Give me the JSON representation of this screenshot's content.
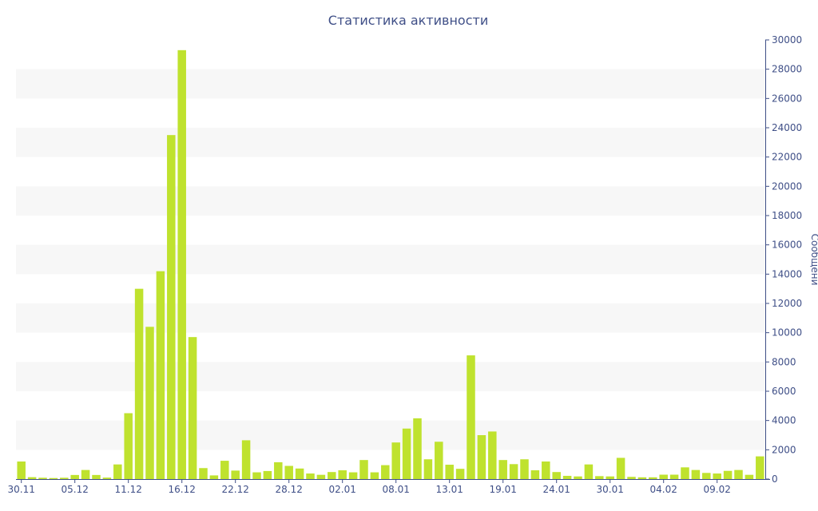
{
  "chart_data": {
    "type": "bar",
    "title": "Статистика активности",
    "xlabel": "",
    "ylabel": "Сообщени",
    "x_tick_labels": [
      "30.11",
      "05.12",
      "11.12",
      "16.12",
      "22.12",
      "28.12",
      "02.01",
      "08.01",
      "13.01",
      "19.01",
      "24.01",
      "30.01",
      "04.02",
      "09.02"
    ],
    "ylim": [
      0,
      30000
    ],
    "y_ticks": [
      0,
      2000,
      4000,
      6000,
      8000,
      10000,
      12000,
      14000,
      16000,
      18000,
      20000,
      22000,
      24000,
      26000,
      28000,
      30000
    ],
    "y_axis_position": "right",
    "grid": "horizontal alternating bands",
    "series": [
      {
        "values": [
          1200,
          130,
          90,
          70,
          90,
          280,
          620,
          280,
          100,
          1000,
          4500,
          13000,
          10400,
          14200,
          23500,
          29300,
          9700,
          750,
          250,
          1250,
          580,
          2650,
          460,
          550,
          1150,
          900,
          720,
          380,
          290,
          480,
          600,
          460,
          1300,
          460,
          950,
          2500,
          3450,
          4150,
          1350,
          2550,
          980,
          700,
          8450,
          3000,
          3250,
          1300,
          1020,
          1350,
          600,
          1200,
          480,
          220,
          180,
          1000,
          200,
          180,
          1450,
          150,
          120,
          120,
          300,
          300,
          800,
          620,
          420,
          380,
          560,
          620,
          290,
          1550
        ]
      }
    ],
    "colors": {
      "bar": "#bfe22e",
      "axis_text": "#3f4f87",
      "band": "#f7f7f7"
    }
  }
}
